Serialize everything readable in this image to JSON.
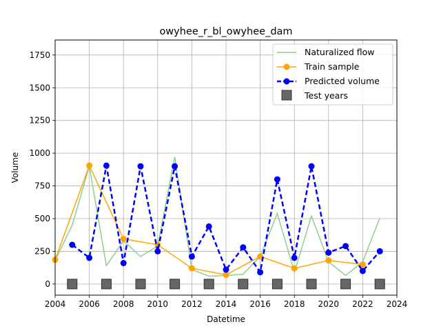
{
  "chart_data": {
    "type": "line",
    "title": "owyhee_r_bl_owyhee_dam",
    "xlabel": "Datetime",
    "ylabel": "Volume",
    "xlim": [
      2004,
      2024
    ],
    "ylim": [
      -85,
      1865
    ],
    "x_ticks": [
      "2004",
      "2006",
      "2008",
      "2010",
      "2012",
      "2014",
      "2016",
      "2018",
      "2020",
      "2022",
      "2024"
    ],
    "y_ticks": [
      "0",
      "250",
      "500",
      "750",
      "1000",
      "1250",
      "1500",
      "1750"
    ],
    "grid": true,
    "legend_position": "top-right",
    "series": [
      {
        "name": "Naturalized flow",
        "style": "line",
        "color": "#8fce8f",
        "x": [
          2004.0,
          2005.0,
          2006.0,
          2007.0,
          2008.0,
          2009.0,
          2010.0,
          2011.0,
          2012.0,
          2013.0,
          2014.0,
          2015.0,
          2016.0,
          2017.0,
          2018.0,
          2019.0,
          2020.0,
          2021.0,
          2022.0,
          2023.0
        ],
        "y": [
          180,
          450,
          900,
          140,
          330,
          210,
          290,
          970,
          110,
          60,
          65,
          75,
          210,
          540,
          90,
          520,
          170,
          65,
          170,
          505
        ]
      },
      {
        "name": "Train sample",
        "style": "line-marker",
        "color": "#ffa500",
        "x": [
          2004.0,
          2006.0,
          2008.0,
          2010.0,
          2012.0,
          2014.0,
          2016.0,
          2018.0,
          2020.0,
          2022.0
        ],
        "y": [
          185,
          905,
          345,
          300,
          120,
          70,
          210,
          120,
          180,
          150
        ]
      },
      {
        "name": "Predicted volume",
        "style": "dashed-marker",
        "color": "#0000ff",
        "x": [
          2005.0,
          2006.0,
          2007.0,
          2008.0,
          2009.0,
          2010.0,
          2011.0,
          2012.0,
          2013.0,
          2014.0,
          2015.0,
          2016.0,
          2017.0,
          2018.0,
          2019.0,
          2020.0,
          2021.0,
          2022.0,
          2023.0
        ],
        "y": [
          300,
          200,
          905,
          160,
          900,
          250,
          900,
          210,
          440,
          110,
          280,
          90,
          800,
          200,
          900,
          240,
          290,
          100,
          250
        ]
      },
      {
        "name": "Test years",
        "style": "square",
        "color": "#666666",
        "x": [
          2005,
          2007,
          2009,
          2011,
          2013,
          2015,
          2017,
          2019,
          2021,
          2023
        ],
        "y": [
          0,
          0,
          0,
          0,
          0,
          0,
          0,
          0,
          0,
          0
        ]
      }
    ]
  }
}
